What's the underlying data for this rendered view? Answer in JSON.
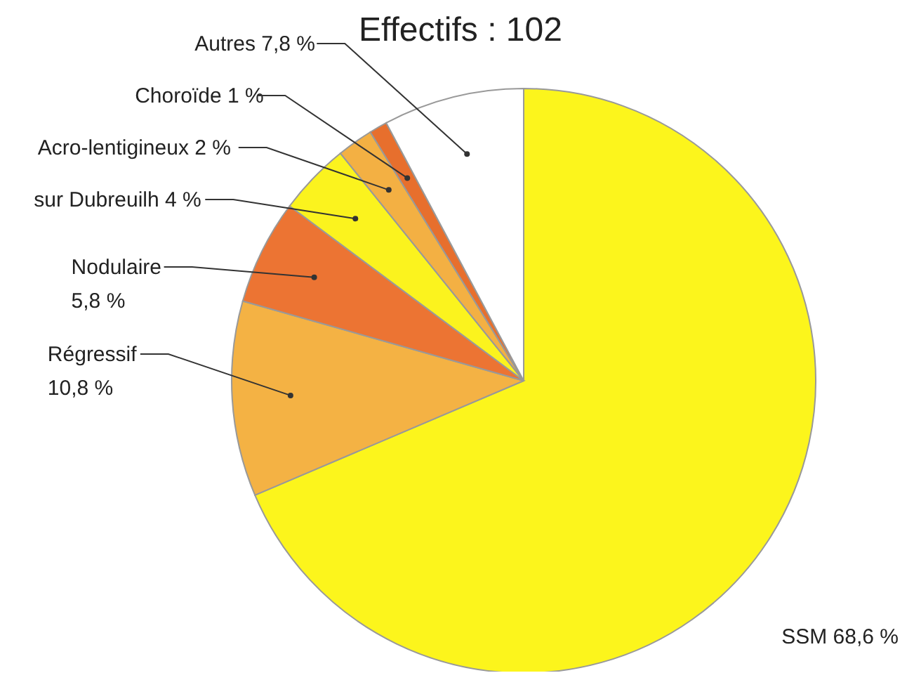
{
  "chart_data": {
    "type": "pie",
    "title": "Effectifs : 102",
    "categories": [
      "SSM",
      "Régressif",
      "Nodulaire",
      "sur Dubreuilh",
      "Acro-lentigineux",
      "Choroïde",
      "Autres"
    ],
    "values": [
      68.6,
      10.8,
      5.8,
      4,
      2,
      1,
      7.8
    ],
    "value_labels": [
      "68,6 %",
      "10,8 %",
      "5,8 %",
      "4 %",
      "2 %",
      "1 %",
      "7,8 %"
    ],
    "colors": [
      "#fcf51c",
      "#f4b244",
      "#ec7433",
      "#fbf31e",
      "#f3b043",
      "#e76f2d",
      "#ffffff"
    ],
    "legend": false
  }
}
